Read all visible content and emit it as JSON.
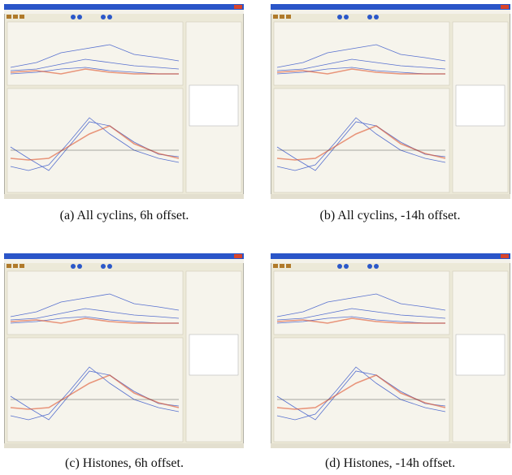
{
  "captions": [
    "(a) All cyclins, 6h offset.",
    "(b) All cyclins, -14h offset.",
    "(c) Histones, 6h offset.",
    "(d) Histones, -14h offset."
  ]
}
